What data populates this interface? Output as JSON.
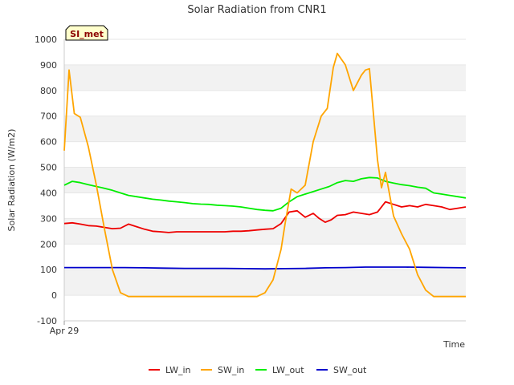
{
  "chart_data": {
    "type": "line",
    "title": "Solar Radiation from CNR1",
    "xlabel": "Time",
    "ylabel": "Solar Radiation (W/m2)",
    "badge": "SI_met",
    "ylim": [
      -100,
      1000
    ],
    "yticks": [
      -100,
      0,
      100,
      200,
      300,
      400,
      500,
      600,
      700,
      800,
      900,
      1000
    ],
    "xlim": [
      0,
      100
    ],
    "xticks": [
      {
        "x": 0,
        "label": "Apr 29"
      }
    ],
    "grid": "horizontal-bands",
    "legend_position": "bottom",
    "series": [
      {
        "name": "LW_in",
        "color": "#ee0000",
        "x": [
          0,
          2,
          4,
          6,
          8,
          10,
          12,
          14,
          16,
          18,
          20,
          22,
          24,
          26,
          28,
          30,
          32,
          34,
          36,
          38,
          40,
          42,
          44,
          46,
          48,
          50,
          52,
          54,
          56,
          58,
          60,
          62,
          63.5,
          65,
          66.5,
          68,
          70,
          72,
          74,
          76,
          78,
          80,
          82,
          84,
          86,
          88,
          90,
          92,
          94,
          96,
          98,
          100
        ],
        "y": [
          280,
          283,
          278,
          272,
          270,
          265,
          260,
          262,
          278,
          268,
          258,
          250,
          248,
          245,
          248,
          248,
          248,
          248,
          248,
          248,
          248,
          250,
          250,
          252,
          255,
          258,
          260,
          280,
          325,
          330,
          305,
          320,
          300,
          285,
          295,
          312,
          315,
          325,
          320,
          315,
          325,
          365,
          355,
          345,
          350,
          345,
          355,
          350,
          345,
          335,
          340,
          345
        ]
      },
      {
        "name": "SW_in",
        "color": "#ffa500",
        "x": [
          0,
          1.2,
          2.5,
          4,
          6,
          8,
          10,
          12,
          14,
          16,
          18,
          20,
          22,
          24,
          26,
          28,
          30,
          32,
          34,
          36,
          38,
          40,
          42,
          44,
          46,
          48,
          50,
          52,
          54,
          55,
          56.5,
          58,
          60,
          62,
          64,
          65.5,
          67,
          68,
          70,
          72,
          74,
          75,
          76,
          78,
          79,
          80,
          82,
          84,
          86,
          88,
          90,
          92,
          94,
          96,
          98,
          100
        ],
        "y": [
          565,
          880,
          710,
          695,
          580,
          430,
          260,
          100,
          10,
          -5,
          -5,
          -5,
          -5,
          -5,
          -5,
          -5,
          -5,
          -5,
          -5,
          -5,
          -5,
          -5,
          -5,
          -5,
          -5,
          -5,
          10,
          60,
          180,
          280,
          415,
          400,
          430,
          600,
          700,
          730,
          890,
          945,
          900,
          800,
          860,
          880,
          885,
          530,
          420,
          480,
          310,
          240,
          180,
          80,
          20,
          -5,
          -5,
          -5,
          -5,
          -5
        ]
      },
      {
        "name": "LW_out",
        "color": "#00ee00",
        "x": [
          0,
          2,
          4,
          6,
          8,
          10,
          12,
          14,
          16,
          18,
          20,
          22,
          24,
          26,
          28,
          30,
          32,
          34,
          36,
          38,
          40,
          42,
          44,
          46,
          48,
          50,
          52,
          54,
          56,
          58,
          60,
          62,
          64,
          66,
          68,
          70,
          72,
          74,
          76,
          78,
          80,
          82,
          84,
          86,
          88,
          90,
          92,
          94,
          96,
          98,
          100
        ],
        "y": [
          430,
          445,
          440,
          432,
          425,
          418,
          410,
          400,
          390,
          385,
          380,
          375,
          372,
          368,
          365,
          362,
          358,
          356,
          355,
          352,
          350,
          348,
          345,
          340,
          335,
          332,
          330,
          340,
          365,
          385,
          395,
          405,
          415,
          425,
          440,
          448,
          445,
          455,
          460,
          458,
          445,
          438,
          432,
          428,
          422,
          418,
          400,
          395,
          390,
          385,
          380
        ]
      },
      {
        "name": "SW_out",
        "color": "#0000cc",
        "x": [
          0,
          5,
          10,
          15,
          20,
          25,
          30,
          35,
          40,
          45,
          50,
          55,
          60,
          65,
          70,
          75,
          80,
          85,
          90,
          95,
          100
        ],
        "y": [
          108,
          108,
          108,
          108,
          107,
          106,
          105,
          105,
          105,
          104,
          103,
          104,
          105,
          107,
          108,
          110,
          110,
          110,
          109,
          108,
          107
        ]
      }
    ]
  }
}
